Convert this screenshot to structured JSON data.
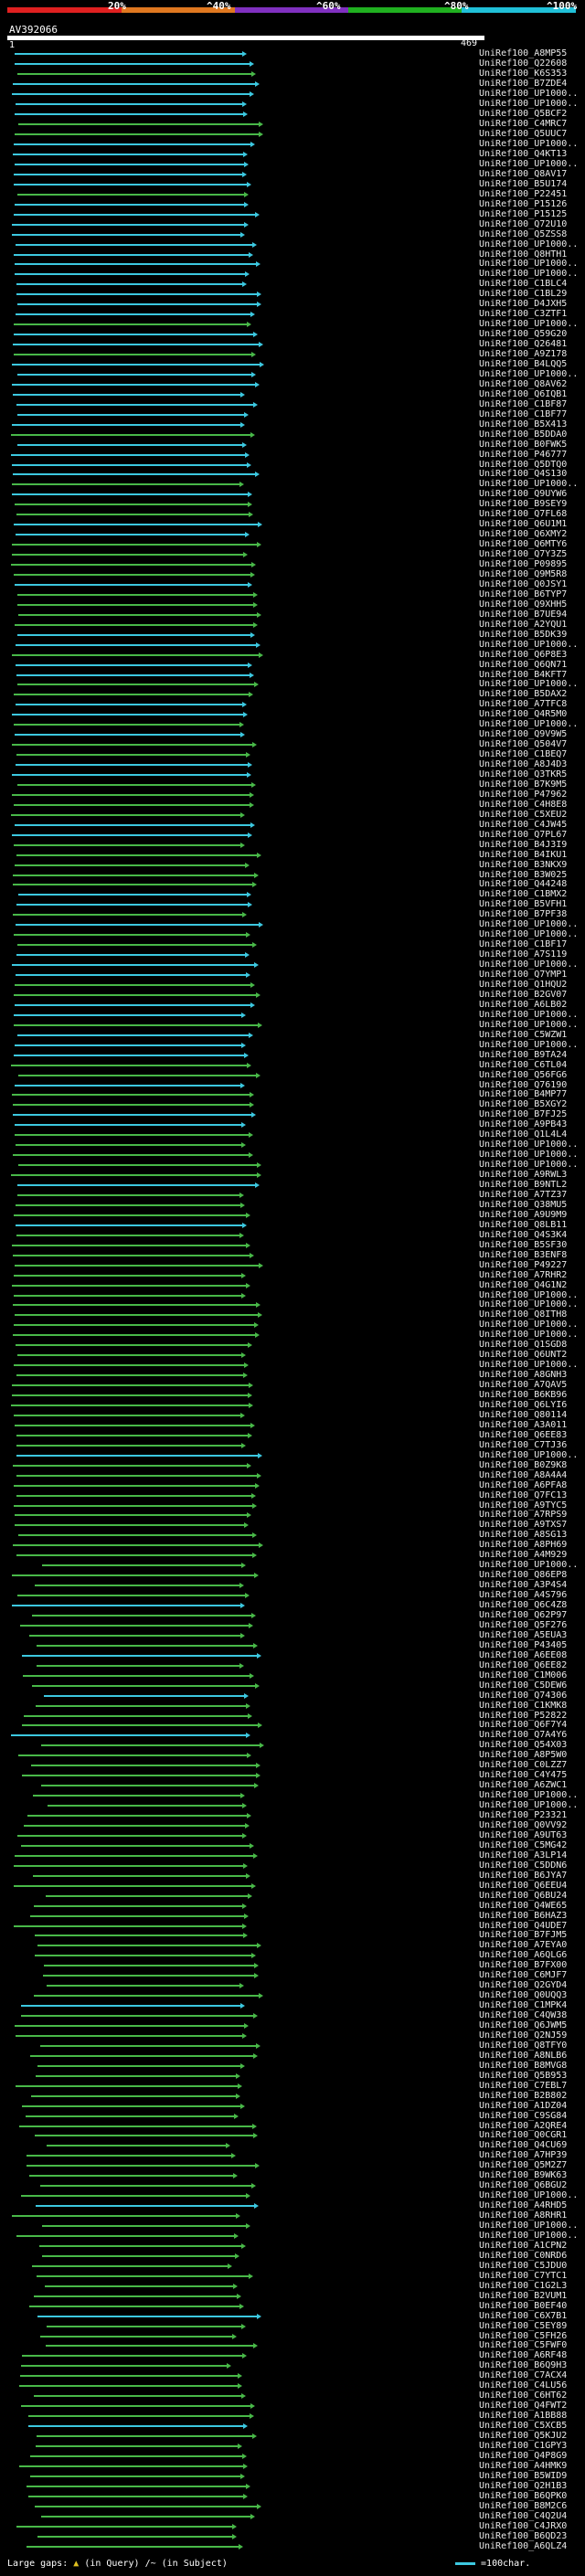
{
  "colors": {
    "cyan": "#3cc8e0",
    "green": "#48b848",
    "legend_red": "#e02020",
    "legend_orange": "#e07820",
    "legend_purple": "#8030c0",
    "legend_green": "#20b020",
    "legend_cyan": "#20c0d8"
  },
  "legend": {
    "percent_labels": [
      "20%",
      "^40%",
      "^60%",
      "^80%",
      "^100%"
    ]
  },
  "query": {
    "id": "AV392066",
    "scale_start": "1",
    "scale_end": "469"
  },
  "hits": {
    "labels": [
      "UniRef100_A8MP55",
      "UniRef100_Q22608",
      "UniRef100_K6S353",
      "UniRef100_B7ZDE4",
      "UniRef100_UP1000..",
      "UniRef100_UP1000..",
      "UniRef100_Q5BCF2",
      "UniRef100_C4MRC7",
      "UniRef100_Q5UUC7",
      "UniRef100_UP1000..",
      "UniRef100_Q4KT13",
      "UniRef100_UP1000..",
      "UniRef100_Q8AV17",
      "UniRef100_B5U174",
      "UniRef100_P22451",
      "UniRef100_P15126",
      "UniRef100_P15125",
      "UniRef100_Q72U10",
      "UniRef100_Q5ZSS8",
      "UniRef100_UP1000..",
      "UniRef100_Q8HTH1",
      "UniRef100_UP1000..",
      "UniRef100_UP1000..",
      "UniRef100_C1BLC4",
      "UniRef100_C1BL29",
      "UniRef100_D4JXH5",
      "UniRef100_C3ZTF1",
      "UniRef100_UP1000..",
      "UniRef100_Q59G20",
      "UniRef100_Q26481",
      "UniRef100_A9Z178",
      "UniRef100_B4LQQ5",
      "UniRef100_UP1000..",
      "UniRef100_Q8AV62",
      "UniRef100_Q6IQB1",
      "UniRef100_C1BF87",
      "UniRef100_C1BF77",
      "UniRef100_B5X413",
      "UniRef100_B5DDA0",
      "UniRef100_B0FWK5",
      "UniRef100_P46777",
      "UniRef100_Q5DTQ0",
      "UniRef100_Q4S130",
      "UniRef100_UP1000..",
      "UniRef100_Q9UYW6",
      "UniRef100_B9SEY9",
      "UniRef100_Q7FL68",
      "UniRef100_Q6U1M1",
      "UniRef100_Q6XMY2",
      "UniRef100_Q6MTY6",
      "UniRef100_Q7Y3Z5",
      "UniRef100_P09895",
      "UniRef100_Q9M5R8",
      "UniRef100_Q0JSY1",
      "UniRef100_B6TYP7",
      "UniRef100_Q9XHH5",
      "UniRef100_B7UE94",
      "UniRef100_A2YQU1",
      "UniRef100_B5DK39",
      "UniRef100_UP1000..",
      "UniRef100_Q6P8E3",
      "UniRef100_Q6QN71",
      "UniRef100_B4KFT7",
      "UniRef100_UP1000..",
      "UniRef100_B5DAX2",
      "UniRef100_A7TFC8",
      "UniRef100_Q4R5M0",
      "UniRef100_UP1000..",
      "UniRef100_Q9V9W5",
      "UniRef100_Q504V7",
      "UniRef100_C1BEQ7",
      "UniRef100_A8J4D3",
      "UniRef100_Q3TKR5",
      "UniRef100_B7K9M5",
      "UniRef100_P47962",
      "UniRef100_C4H8E8",
      "UniRef100_C5XEU2",
      "UniRef100_C4JW45",
      "UniRef100_Q7PL67",
      "UniRef100_B4J3I9",
      "UniRef100_B4IKU1",
      "UniRef100_B3NKX9",
      "UniRef100_B3W025",
      "UniRef100_Q44248",
      "UniRef100_C1BMX2",
      "UniRef100_B5VFH1",
      "UniRef100_B7PF38",
      "UniRef100_UP1000..",
      "UniRef100_UP1000..",
      "UniRef100_C1BF17",
      "UniRef100_A7S119",
      "UniRef100_UP1000..",
      "UniRef100_Q7YMP1",
      "UniRef100_Q1HQU2",
      "UniRef100_B2GV07",
      "UniRef100_A6LB02",
      "UniRef100_UP1000..",
      "UniRef100_UP1000..",
      "UniRef100_C5WZW1",
      "UniRef100_UP1000..",
      "UniRef100_B9TA24",
      "UniRef100_C6TL04",
      "UniRef100_Q56FG6",
      "UniRef100_Q76190",
      "UniRef100_B4MP77",
      "UniRef100_B5XGY2",
      "UniRef100_B7FJ25",
      "UniRef100_A9PB43",
      "UniRef100_Q1L4L4",
      "UniRef100_UP1000..",
      "UniRef100_UP1000..",
      "UniRef100_UP1000..",
      "UniRef100_A9RWL3",
      "UniRef100_B9NTL2",
      "UniRef100_A7TZ37",
      "UniRef100_Q38MU5",
      "UniRef100_A9U9M9",
      "UniRef100_Q8LB11",
      "UniRef100_Q4S3K4",
      "UniRef100_B5SF30",
      "UniRef100_B3ENF8",
      "UniRef100_P49227",
      "UniRef100_A7RHR2",
      "UniRef100_Q4G1N2",
      "UniRef100_UP1000..",
      "UniRef100_UP1000..",
      "UniRef100_Q8ITH8",
      "UniRef100_UP1000..",
      "UniRef100_UP1000..",
      "UniRef100_Q1SGD8",
      "UniRef100_Q6UNT2",
      "UniRef100_UP1000..",
      "UniRef100_A8GNH3",
      "UniRef100_A7QAV5",
      "UniRef100_B6KB96",
      "UniRef100_Q6LYI6",
      "UniRef100_Q80114",
      "UniRef100_A3A011",
      "UniRef100_Q6EE83",
      "UniRef100_C7TJ36",
      "UniRef100_UP1000..",
      "UniRef100_B0Z9K8",
      "UniRef100_A8A4A4",
      "UniRef100_A6PFA8",
      "UniRef100_Q7FC13",
      "UniRef100_A9TYC5",
      "UniRef100_A7RPS9",
      "UniRef100_A9TXS7",
      "UniRef100_A8SG13",
      "UniRef100_A8PH69",
      "UniRef100_A4M929",
      "UniRef100_UP1000..",
      "UniRef100_Q86EP8",
      "UniRef100_A3P4S4",
      "UniRef100_A4S796",
      "UniRef100_Q6C4Z8",
      "UniRef100_Q62P97",
      "UniRef100_Q5F276",
      "UniRef100_A5EUA3",
      "UniRef100_P43405",
      "UniRef100_A6EE08",
      "UniRef100_Q6EE82",
      "UniRef100_C1M006",
      "UniRef100_C5DEW6",
      "UniRef100_Q74306",
      "UniRef100_C1KMK8",
      "UniRef100_P52822",
      "UniRef100_Q6F7Y4",
      "UniRef100_Q7A4Y6",
      "UniRef100_Q54X03",
      "UniRef100_A8P5W0",
      "UniRef100_C0LZZ7",
      "UniRef100_C4Y475",
      "UniRef100_A6ZWC1",
      "UniRef100_UP1000..",
      "UniRef100_UP1000..",
      "UniRef100_P23321",
      "UniRef100_Q0VV92",
      "UniRef100_A9UT63",
      "UniRef100_C5MG42",
      "UniRef100_A3LP14",
      "UniRef100_C5DDN6",
      "UniRef100_B6JYA7",
      "UniRef100_Q6EEU4",
      "UniRef100_Q6BU24",
      "UniRef100_Q4WE65",
      "UniRef100_B6HAZ3",
      "UniRef100_Q4UDE7",
      "UniRef100_B7FJM5",
      "UniRef100_A7EYA0",
      "UniRef100_A6QLG6",
      "UniRef100_B7FX00",
      "UniRef100_C6MJF7",
      "UniRef100_Q2GYD4",
      "UniRef100_Q0UQQ3",
      "UniRef100_C1MPK4",
      "UniRef100_C4QW38",
      "UniRef100_Q6JWM5",
      "UniRef100_Q2NJ59",
      "UniRef100_Q8TFY0",
      "UniRef100_A8NLB6",
      "UniRef100_B8MVG8",
      "UniRef100_Q5B953",
      "UniRef100_C7EBL7",
      "UniRef100_B2B802",
      "UniRef100_A1DZ04",
      "UniRef100_C9SG84",
      "UniRef100_A2QRE4",
      "UniRef100_Q0CGR1",
      "UniRef100_Q4CU69",
      "UniRef100_A7HP39",
      "UniRef100_Q5M2Z7",
      "UniRef100_B9WK63",
      "UniRef100_Q6BGU2",
      "UniRef100_UP1000..",
      "UniRef100_A4RHD5",
      "UniRef100_A8RHR1",
      "UniRef100_UP1000..",
      "UniRef100_UP1000..",
      "UniRef100_A1CPN2",
      "UniRef100_C0NRD6",
      "UniRef100_C5JDU0",
      "UniRef100_C7YTC1",
      "UniRef100_C1G2L3",
      "UniRef100_B2VUM1",
      "UniRef100_B0EF40",
      "UniRef100_C6X7B1",
      "UniRef100_C5EY89",
      "UniRef100_C5FH26",
      "UniRef100_C5FWF0",
      "UniRef100_A6RF48",
      "UniRef100_B6Q9H3",
      "UniRef100_C7ACX4",
      "UniRef100_C4LU56",
      "UniRef100_C6HT62",
      "UniRef100_Q4FWT2",
      "UniRef100_A1BB88",
      "UniRef100_C5XCB5",
      "UniRef100_Q5KJU2",
      "UniRef100_C1GPY3",
      "UniRef100_Q4P8G9",
      "UniRef100_A4HMK9",
      "UniRef100_B5WID9",
      "UniRef100_Q2H1B3",
      "UniRef100_B6QPK0",
      "UniRef100_B8M2C6",
      "UniRef100_C4Q2U4",
      "UniRef100_C4JRX0",
      "UniRef100_B6QD23",
      "UniRef100_A6QLZ4"
    ]
  },
  "footer": {
    "large_gaps": "Large gaps:",
    "in_query": "(in Query)",
    "in_subject": "/~ (in Subject)",
    "scale_note": "=100char."
  }
}
